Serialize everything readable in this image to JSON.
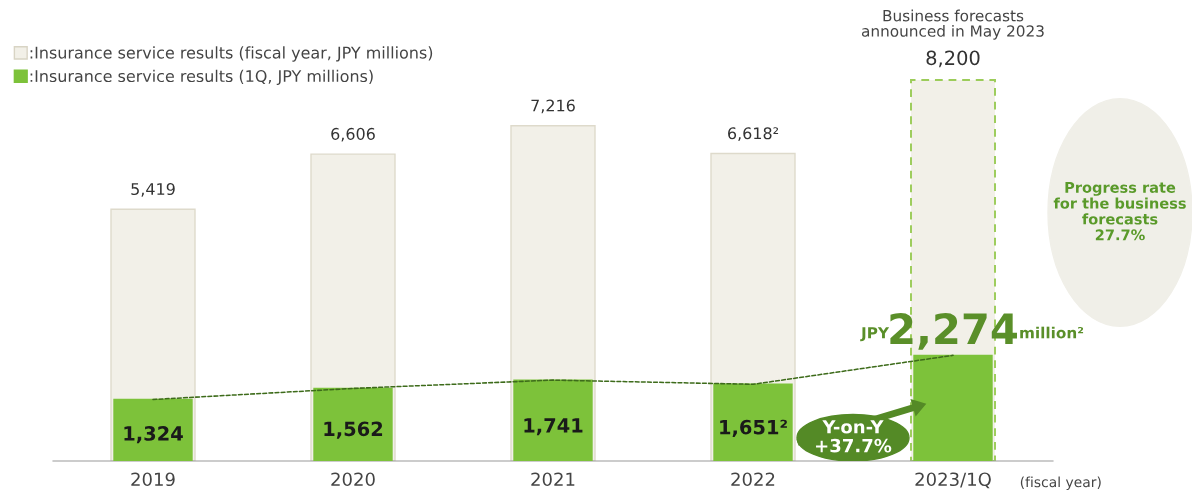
{
  "chart_data": {
    "type": "bar",
    "categories": [
      "2019",
      "2020",
      "2021",
      "2022",
      "2023/1Q"
    ],
    "series": [
      {
        "name": ":Insurance service results (fiscal year, JPY millions)",
        "color": "#f2f0e8",
        "values": [
          5419,
          6606,
          7216,
          6618,
          8200
        ],
        "value_labels": [
          "5,419",
          "6,606",
          "7,216",
          "6,618²",
          "8,200"
        ],
        "line_style": [
          "solid",
          "solid",
          "solid",
          "solid",
          "dashed"
        ]
      },
      {
        "type": "line",
        "color": "#3d6b1a",
        "line_style": "dashed",
        "values": [
          1324,
          1562,
          1741,
          1651,
          2274
        ]
      },
      {
        "name": ":Insurance service results (1Q, JPY millions)",
        "color": "#7dc23a",
        "values": [
          1324,
          1562,
          1741,
          1651,
          2274
        ],
        "value_labels": [
          "1,324",
          "1,562",
          "1,741",
          "1,651²",
          "2,274"
        ]
      }
    ],
    "tick_labels": "x",
    "grid": false,
    "legend": "top left",
    "annotations": [
      "Business forecasts\nannounced in May 2023",
      "JPY",
      "million²",
      "Y-on-Y\n+37.7%",
      "Progress rate\nfor the business\nforecasts\n27.7%",
      "(fiscal year)"
    ]
  }
}
